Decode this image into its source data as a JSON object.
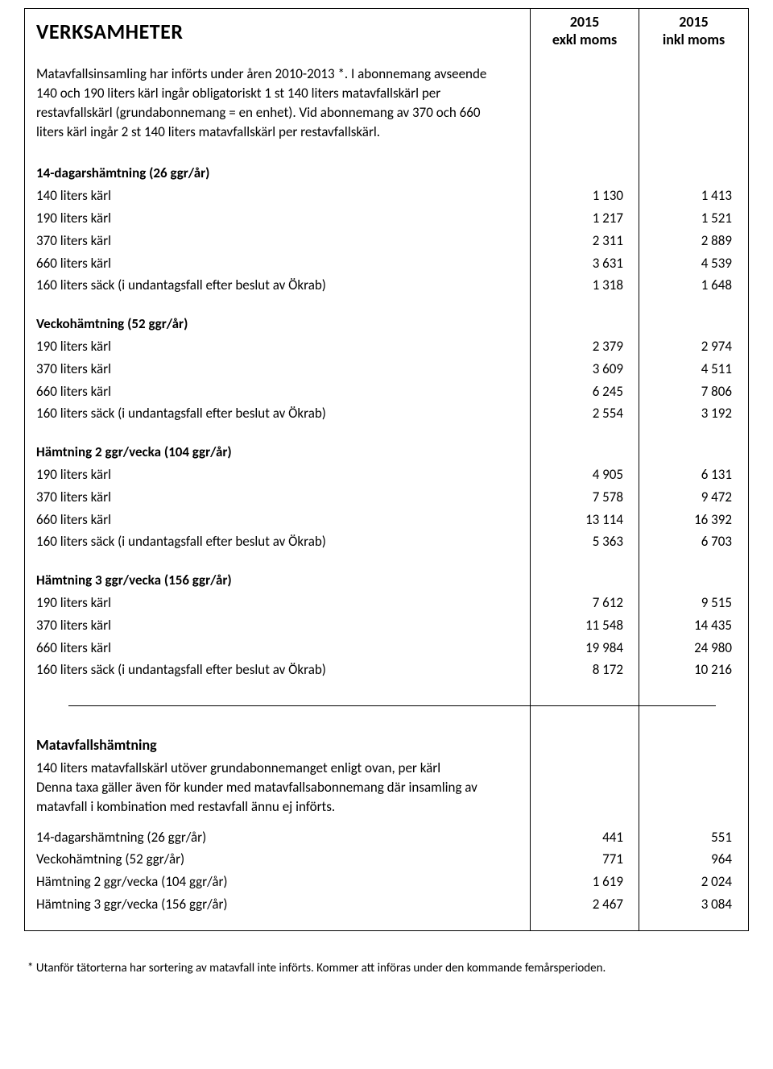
{
  "header": {
    "title": "VERKSAMHETER",
    "col1_line1": "2015",
    "col1_line2": "exkl moms",
    "col2_line1": "2015",
    "col2_line2": "inkl moms"
  },
  "intro": "Matavfallsinsamling har införts under åren 2010-2013 *. I abonnemang avseende 140 och 190 liters kärl ingår obligatoriskt 1 st 140 liters matavfallskärl per restavfallskärl (grund­abonnemang = en enhet). Vid abonnemang av 370 och 660 liters kärl ingår 2 st 140 liters matavfallskärl per restavfallskärl.",
  "sections": [
    {
      "title": "14-dagarshämtning (26 ggr/år)",
      "rows": [
        {
          "label": "140 liters kärl",
          "v1": "1 130",
          "v2": "1 413"
        },
        {
          "label": "190 liters kärl",
          "v1": "1 217",
          "v2": "1 521"
        },
        {
          "label": "370 liters kärl",
          "v1": "2 311",
          "v2": "2 889"
        },
        {
          "label": "660 liters kärl",
          "v1": "3 631",
          "v2": "4 539"
        },
        {
          "label": "160 liters säck (i undantagsfall efter beslut av Ökrab)",
          "v1": "1 318",
          "v2": "1 648"
        }
      ]
    },
    {
      "title": "Veckohämtning (52 ggr/år)",
      "rows": [
        {
          "label": "190 liters kärl",
          "v1": "2 379",
          "v2": "2 974"
        },
        {
          "label": "370 liters kärl",
          "v1": "3 609",
          "v2": "4 511"
        },
        {
          "label": "660 liters kärl",
          "v1": "6 245",
          "v2": "7 806"
        },
        {
          "label": "160 liters säck (i undantagsfall efter beslut av Ökrab)",
          "v1": "2 554",
          "v2": "3 192"
        }
      ]
    },
    {
      "title": "Hämtning 2 ggr/vecka (104 ggr/år)",
      "rows": [
        {
          "label": "190 liters kärl",
          "v1": "4 905",
          "v2": "6 131"
        },
        {
          "label": "370 liters kärl",
          "v1": "7 578",
          "v2": "9 472"
        },
        {
          "label": "660 liters kärl",
          "v1": "13 114",
          "v2": "16 392"
        },
        {
          "label": "160 liters säck (i undantagsfall efter beslut av Ökrab)",
          "v1": "5 363",
          "v2": "6 703"
        }
      ]
    },
    {
      "title": "Hämtning 3 ggr/vecka (156 ggr/år)",
      "rows": [
        {
          "label": "190 liters kärl",
          "v1": "7 612",
          "v2": "9 515"
        },
        {
          "label": "370 liters kärl",
          "v1": "11 548",
          "v2": "14 435"
        },
        {
          "label": "660 liters kärl",
          "v1": "19 984",
          "v2": "24 980"
        },
        {
          "label": "160 liters säck (i undantagsfall efter beslut av Ökrab)",
          "v1": "8 172",
          "v2": "10 216"
        }
      ]
    }
  ],
  "matavfall": {
    "title": "Matavfallshämtning",
    "desc": "140 liters matavfallskärl utöver grundabonnemanget enligt ovan, per kärl\nDenna taxa gäller även för kunder med matavfallsabonnemang där insamling av matavfall i kombination med restavfall ännu ej införts.",
    "rows": [
      {
        "label": "14-dagarshämtning (26 ggr/år)",
        "v1": "441",
        "v2": "551"
      },
      {
        "label": "Veckohämtning (52 ggr/år)",
        "v1": "771",
        "v2": "964"
      },
      {
        "label": "Hämtning 2 ggr/vecka (104 ggr/år)",
        "v1": "1 619",
        "v2": "2 024"
      },
      {
        "label": "Hämtning 3 ggr/vecka (156 ggr/år)",
        "v1": "2 467",
        "v2": "3 084"
      }
    ]
  },
  "footnote": "*  Utanför tätorterna har sortering av matavfall inte införts. Kommer att införas under den kommande femårsperioden."
}
